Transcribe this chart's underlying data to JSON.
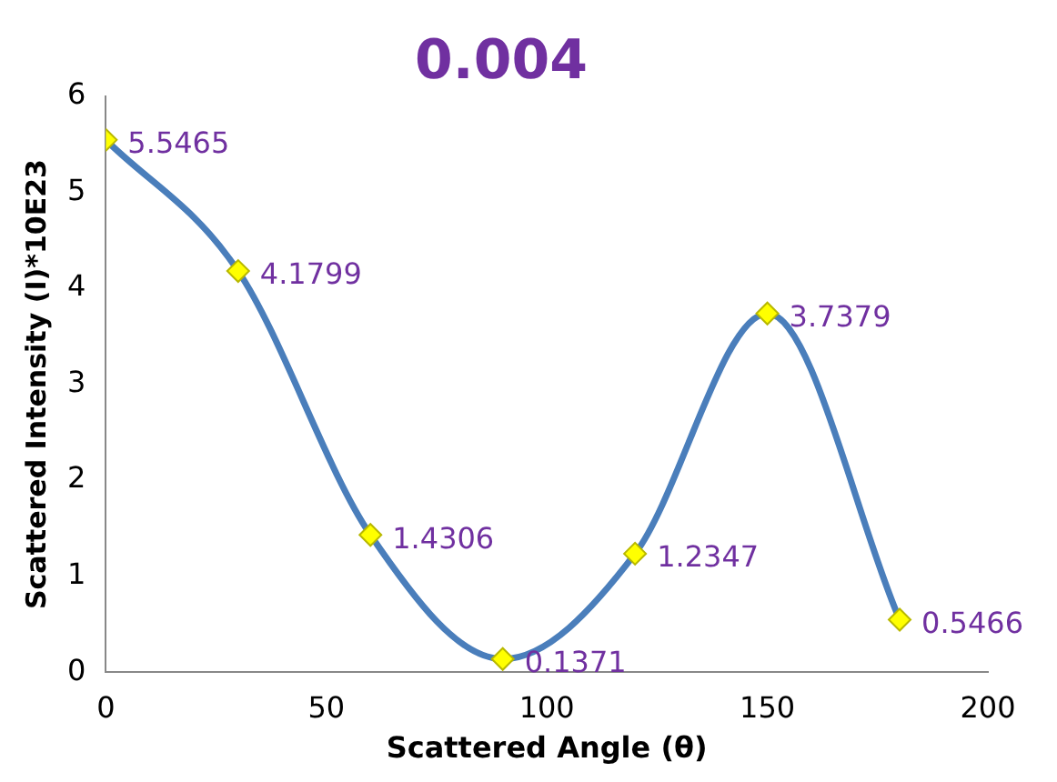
{
  "chart_data": {
    "type": "line",
    "title": "0.004",
    "xlabel": "Scattered Angle (θ)",
    "ylabel": "Scattered Intensity (I)*10E23",
    "x": [
      0,
      30,
      60,
      90,
      120,
      150,
      180
    ],
    "series": [
      {
        "color": "#4a7ebb",
        "values": [
          5.5465,
          4.1799,
          1.4306,
          0.1371,
          1.2347,
          3.7379,
          0.5466
        ]
      }
    ],
    "xlim": [
      0,
      200
    ],
    "xticks": [
      0,
      50,
      100,
      150,
      200
    ],
    "ylim": [
      0,
      6
    ],
    "yticks": [
      0,
      1,
      2,
      3,
      4,
      5,
      6
    ],
    "grid": false,
    "legend": false,
    "marker": "diamond",
    "data_labels": true
  }
}
